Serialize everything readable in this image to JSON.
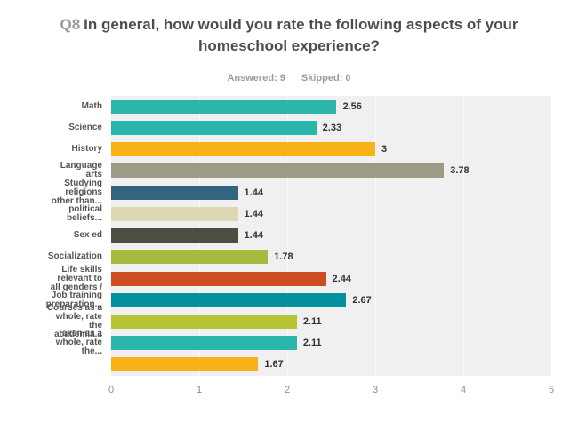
{
  "page": {
    "question_number": "Q8",
    "title": "In general, how would you rate the following aspects of your homeschool experience?",
    "answered_label": "Answered: 9",
    "skipped_label": "Skipped: 0"
  },
  "chart_data": {
    "type": "bar",
    "orientation": "horizontal",
    "title": "Q8 In general, how would you rate the following aspects of your homeschool experience?",
    "xlabel": "",
    "ylabel": "",
    "xlim": [
      0,
      5
    ],
    "x_ticks": [
      "0",
      "1",
      "2",
      "3",
      "4",
      "5"
    ],
    "grid": "subtle-vertical",
    "legend": "none",
    "plot_background": "#f0f0f0",
    "categories": [
      [
        "Math"
      ],
      [
        "Science"
      ],
      [
        "History"
      ],
      [
        "Language",
        "arts"
      ],
      [
        "Studying",
        "religions",
        "other than..."
      ],
      [
        "political",
        "beliefs..."
      ],
      [
        "Sex ed"
      ],
      [
        "Socialization"
      ],
      [
        "Life skills",
        "relevant to",
        "all genders /"
      ],
      [
        "Job training",
        "preparation..."
      ],
      [
        "Courses as a",
        "whole, rate",
        "the",
        "academia..."
      ],
      [
        "Taken as a",
        "whole, rate",
        "the..."
      ],
      [
        ""
      ]
    ],
    "values": [
      2.56,
      2.33,
      3,
      3.78,
      1.44,
      1.44,
      1.44,
      1.78,
      2.44,
      2.67,
      2.11,
      2.11,
      1.67
    ],
    "value_labels": [
      "2.56",
      "2.33",
      "3",
      "3.78",
      "1.44",
      "1.44",
      "1.44",
      "1.78",
      "2.44",
      "2.67",
      "2.11",
      "2.11",
      "1.67"
    ],
    "bar_colors": [
      "#2cb5ab",
      "#2cb5ab",
      "#f9b118",
      "#9b9b88",
      "#33657f",
      "#dcd8b2",
      "#4e4d41",
      "#a9b93e",
      "#cc4e20",
      "#00919c",
      "#b6c433",
      "#2cb5ab",
      "#f9b118"
    ]
  }
}
